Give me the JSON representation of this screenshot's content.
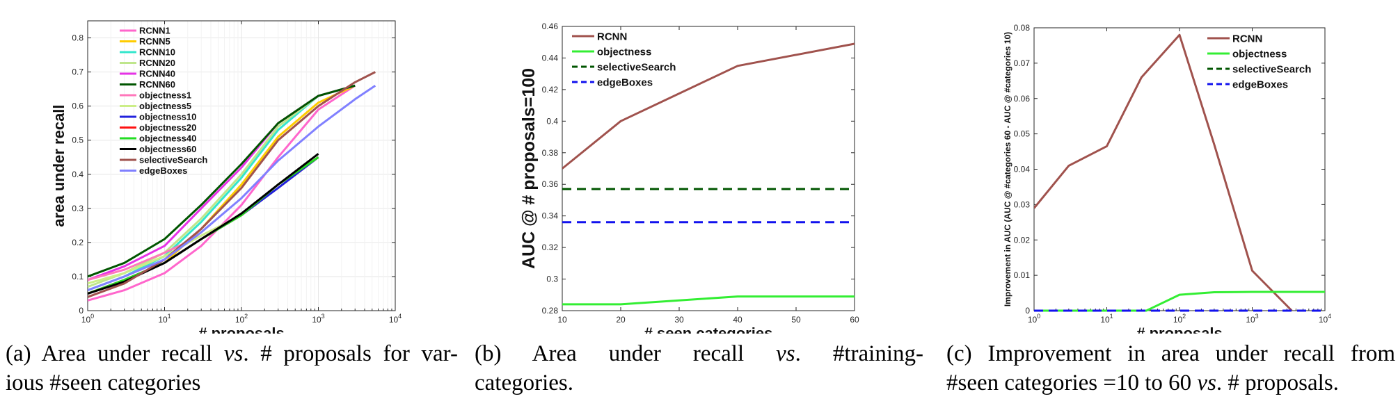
{
  "chart_data": [
    {
      "id": "a",
      "type": "line",
      "xscale": "log",
      "xlabel": "# proposals",
      "ylabel": "area under recall",
      "xlim": [
        1,
        10000
      ],
      "ylim": [
        0,
        0.85
      ],
      "xticks": [
        1,
        10,
        100,
        1000,
        10000
      ],
      "xtick_labels": [
        {
          "b": "10",
          "e": "0"
        },
        {
          "b": "10",
          "e": "1"
        },
        {
          "b": "10",
          "e": "2"
        },
        {
          "b": "10",
          "e": "3"
        },
        {
          "b": "10",
          "e": "4"
        }
      ],
      "yticks": [
        0,
        0.1,
        0.2,
        0.3,
        0.4,
        0.5,
        0.6,
        0.7,
        0.8
      ],
      "ytick_labels": [
        "0",
        "0.1",
        "0.2",
        "0.3",
        "0.4",
        "0.5",
        "0.6",
        "0.7",
        "0.8"
      ],
      "grid": true,
      "legend_position": "top-left",
      "series": [
        {
          "name": "RCNN1",
          "color": "#ff66cc",
          "x": [
            1,
            3,
            10,
            30,
            100,
            300,
            1000,
            3000
          ],
          "y": [
            0.03,
            0.06,
            0.11,
            0.19,
            0.31,
            0.45,
            0.59,
            0.66
          ]
        },
        {
          "name": "RCNN5",
          "color": "#ffcc00",
          "x": [
            1,
            3,
            10,
            30,
            100,
            300,
            1000,
            3000
          ],
          "y": [
            0.05,
            0.09,
            0.14,
            0.24,
            0.37,
            0.51,
            0.61,
            0.66
          ]
        },
        {
          "name": "RCNN10",
          "color": "#33e6cc",
          "x": [
            1,
            3,
            10,
            30,
            100,
            300,
            1000,
            3000
          ],
          "y": [
            0.06,
            0.1,
            0.16,
            0.26,
            0.39,
            0.53,
            0.63,
            0.66
          ]
        },
        {
          "name": "RCNN20",
          "color": "#bfe68c",
          "x": [
            1,
            3,
            10,
            30,
            100,
            300,
            1000,
            3000
          ],
          "y": [
            0.07,
            0.11,
            0.17,
            0.27,
            0.4,
            0.54,
            0.63,
            0.66
          ]
        },
        {
          "name": "RCNN40",
          "color": "#e633e6",
          "x": [
            1,
            3,
            10,
            30,
            100,
            300,
            1000,
            3000
          ],
          "y": [
            0.09,
            0.13,
            0.19,
            0.3,
            0.42,
            0.55,
            0.63,
            0.66
          ]
        },
        {
          "name": "RCNN60",
          "color": "#005500",
          "x": [
            1,
            3,
            10,
            30,
            100,
            300,
            1000,
            3000
          ],
          "y": [
            0.1,
            0.14,
            0.21,
            0.31,
            0.43,
            0.55,
            0.63,
            0.66
          ]
        },
        {
          "name": "objectness1",
          "color": "#ff77bb",
          "x": [
            1,
            3,
            10,
            30,
            100,
            300,
            1000
          ],
          "y": [
            0.09,
            0.12,
            0.17,
            0.22,
            0.28,
            0.36,
            0.45
          ]
        },
        {
          "name": "objectness5",
          "color": "#ccee88",
          "x": [
            1,
            3,
            10,
            30,
            100,
            300,
            1000
          ],
          "y": [
            0.08,
            0.11,
            0.16,
            0.22,
            0.28,
            0.36,
            0.45
          ]
        },
        {
          "name": "objectness10",
          "color": "#2222dd",
          "x": [
            1,
            3,
            10,
            30,
            100,
            300,
            1000
          ],
          "y": [
            0.05,
            0.09,
            0.14,
            0.21,
            0.28,
            0.36,
            0.45
          ]
        },
        {
          "name": "objectness20",
          "color": "#ff1111",
          "x": [
            1,
            3,
            10,
            30,
            100,
            300,
            1000
          ],
          "y": [
            0.05,
            0.09,
            0.14,
            0.21,
            0.28,
            0.37,
            0.45
          ]
        },
        {
          "name": "objectness40",
          "color": "#22dd22",
          "x": [
            1,
            3,
            10,
            30,
            100,
            300,
            1000
          ],
          "y": [
            0.05,
            0.09,
            0.14,
            0.21,
            0.28,
            0.37,
            0.45
          ]
        },
        {
          "name": "objectness60",
          "color": "#000000",
          "x": [
            1,
            3,
            10,
            30,
            100,
            300,
            1000
          ],
          "y": [
            0.05,
            0.085,
            0.14,
            0.21,
            0.285,
            0.37,
            0.46
          ]
        },
        {
          "name": "selectiveSearch",
          "color": "#a0524d",
          "x": [
            1,
            3,
            10,
            30,
            100,
            300,
            1000,
            3000,
            5500
          ],
          "y": [
            0.04,
            0.08,
            0.15,
            0.24,
            0.36,
            0.5,
            0.6,
            0.67,
            0.7
          ]
        },
        {
          "name": "edgeBoxes",
          "color": "#8080ff",
          "x": [
            1,
            3,
            10,
            30,
            100,
            300,
            1000,
            3000,
            5500
          ],
          "y": [
            0.06,
            0.1,
            0.15,
            0.23,
            0.33,
            0.44,
            0.54,
            0.62,
            0.66
          ]
        }
      ]
    },
    {
      "id": "b",
      "type": "line",
      "xscale": "linear",
      "xlabel": "# seen categories",
      "ylabel": "AUC @ # proposals=100",
      "xlim": [
        10,
        60
      ],
      "ylim": [
        0.28,
        0.46
      ],
      "xticks": [
        10,
        20,
        30,
        40,
        50,
        60
      ],
      "xtick_labels": [
        "10",
        "20",
        "30",
        "40",
        "50",
        "60"
      ],
      "yticks": [
        0.28,
        0.3,
        0.32,
        0.34,
        0.36,
        0.38,
        0.4,
        0.42,
        0.44,
        0.46
      ],
      "ytick_labels": [
        "0.28",
        "0.3",
        "0.32",
        "0.34",
        "0.36",
        "0.38",
        "0.4",
        "0.42",
        "0.44",
        "0.46"
      ],
      "grid": false,
      "legend_position": "top-left",
      "series": [
        {
          "name": "RCNN",
          "color": "#a0524d",
          "dash": false,
          "x": [
            10,
            20,
            40,
            60
          ],
          "y": [
            0.37,
            0.4,
            0.435,
            0.449
          ]
        },
        {
          "name": "objectness",
          "color": "#33ee33",
          "dash": false,
          "x": [
            10,
            20,
            40,
            60
          ],
          "y": [
            0.284,
            0.284,
            0.289,
            0.289
          ]
        },
        {
          "name": "selectiveSearch",
          "color": "#005500",
          "dash": true,
          "x": [
            10,
            60
          ],
          "y": [
            0.357,
            0.357
          ]
        },
        {
          "name": "edgeBoxes",
          "color": "#1111ee",
          "dash": true,
          "x": [
            10,
            60
          ],
          "y": [
            0.336,
            0.336
          ]
        }
      ]
    },
    {
      "id": "c",
      "type": "line",
      "xscale": "log",
      "xlabel": "# proposals",
      "ylabel": "Improvement in AUC (AUC @ #categories 60 - AUC @ #categories 10)",
      "xlim": [
        1,
        10000
      ],
      "ylim": [
        0,
        0.08
      ],
      "xticks": [
        1,
        10,
        100,
        1000,
        10000
      ],
      "xtick_labels": [
        {
          "b": "10",
          "e": "0"
        },
        {
          "b": "10",
          "e": "1"
        },
        {
          "b": "10",
          "e": "2"
        },
        {
          "b": "10",
          "e": "3"
        },
        {
          "b": "10",
          "e": "4"
        }
      ],
      "yticks": [
        0,
        0.01,
        0.02,
        0.03,
        0.04,
        0.05,
        0.06,
        0.07,
        0.08
      ],
      "ytick_labels": [
        "0",
        "0.01",
        "0.02",
        "0.03",
        "0.04",
        "0.05",
        "0.06",
        "0.07",
        "0.08"
      ],
      "grid": false,
      "legend_position": "top-right",
      "series": [
        {
          "name": "RCNN",
          "color": "#a0524d",
          "dash": false,
          "x": [
            1,
            3,
            10,
            30,
            100,
            300,
            1000,
            3500
          ],
          "y": [
            0.029,
            0.041,
            0.0465,
            0.066,
            0.078,
            0.047,
            0.0113,
            0
          ]
        },
        {
          "name": "objectness",
          "color": "#33ee33",
          "dash": false,
          "x": [
            1,
            35,
            100,
            300,
            1000,
            10000
          ],
          "y": [
            0,
            0,
            0.0045,
            0.0052,
            0.0053,
            0.0053
          ]
        },
        {
          "name": "selectiveSearch",
          "color": "#005500",
          "dash": true,
          "x": [
            1,
            10000
          ],
          "y": [
            0,
            0
          ]
        },
        {
          "name": "edgeBoxes",
          "color": "#1111ee",
          "dash": true,
          "x": [
            1,
            10000
          ],
          "y": [
            0,
            0
          ]
        }
      ]
    }
  ],
  "captions": {
    "a": {
      "tag": "(a)",
      "line1_pre": "Area under recall",
      "vs": "vs",
      "line1_post": ". # proposals for var-",
      "line2": "ious #seen categories"
    },
    "b": {
      "tag": "(b)",
      "line1_pre": "Area under recall",
      "vs": "vs",
      "line1_post": ". #training-",
      "line2": "categories."
    },
    "c": {
      "tag": "(c)",
      "line1": "Improvement in area under recall from",
      "line2_pre": "#seen categories =10 to 60",
      "vs": "vs",
      "line2_post": ". # proposals."
    }
  }
}
